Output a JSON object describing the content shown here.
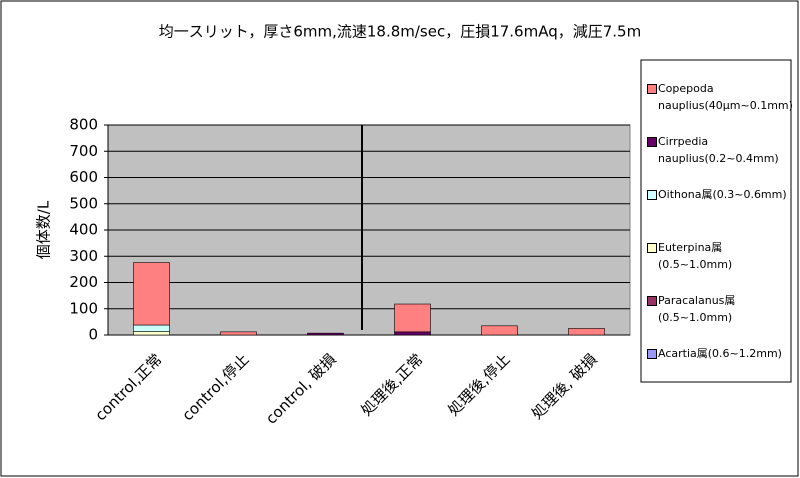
{
  "chart_data": {
    "type": "bar",
    "stacked": true,
    "title": "均一スリット，厚さ6mm,流速18.8m/sec，圧損17.6mAq，減圧7.5m",
    "y_label": "個体数/L",
    "categories": [
      "control,正常",
      "control,停止",
      "control, 破損",
      "処理後,正常",
      "処理後,停止",
      "処理後, 破損"
    ],
    "series": [
      {
        "name": "Copepoda nauplius(40μm~0.1mm)",
        "color": "#FF8080",
        "values": [
          238,
          12,
          0,
          106,
          35,
          25
        ]
      },
      {
        "name": "Cirrpedia nauplius(0.2~0.4mm)",
        "color": "#660066",
        "values": [
          0,
          0,
          7,
          12,
          0,
          0
        ]
      },
      {
        "name": "Oithona属(0.3~0.6mm)",
        "color": "#CCFFFF",
        "values": [
          25,
          0,
          0,
          0,
          0,
          0
        ]
      },
      {
        "name": "Euterpina属(0.5~1.0mm)",
        "color": "#FFFFCC",
        "values": [
          13,
          0,
          0,
          0,
          0,
          0
        ]
      },
      {
        "name": "Paracalanus属(0.5~1.0mm)",
        "color": "#993366",
        "values": [
          0,
          0,
          0,
          0,
          0,
          0
        ]
      },
      {
        "name": "Acartia属(0.6~1.2mm)",
        "color": "#9999FF",
        "values": [
          0,
          0,
          0,
          0,
          0,
          0
        ]
      }
    ],
    "ylim": [
      0,
      800
    ],
    "yticks": [
      0,
      100,
      200,
      300,
      400,
      500,
      600,
      700,
      800
    ],
    "grid": true
  }
}
